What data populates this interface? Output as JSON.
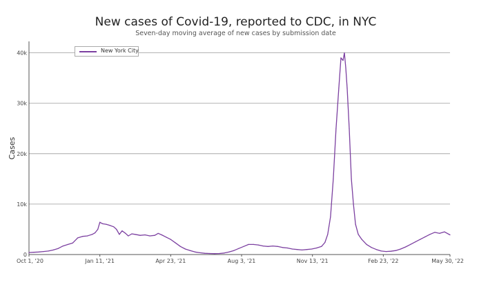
{
  "chart_data": {
    "type": "line",
    "title": "New cases of Covid-19, reported to CDC, in NYC",
    "subtitle": "Seven-day moving average of new cases by submission date",
    "ylabel": "Cases",
    "xlabel": "",
    "ylim": [
      0,
      42000
    ],
    "xlim": [
      "2020-10-01",
      "2022-05-30"
    ],
    "yticks": [
      {
        "value": 0,
        "label": "0"
      },
      {
        "value": 10000,
        "label": "10k"
      },
      {
        "value": 20000,
        "label": "20k"
      },
      {
        "value": 30000,
        "label": "30k"
      },
      {
        "value": 40000,
        "label": "40k"
      }
    ],
    "xticks": [
      {
        "value": "2020-10-01",
        "label": "Oct 1, '20"
      },
      {
        "value": "2021-01-11",
        "label": "Jan 11, '21"
      },
      {
        "value": "2021-04-23",
        "label": "Apr 23, '21"
      },
      {
        "value": "2021-08-03",
        "label": "Aug 3, '21"
      },
      {
        "value": "2021-11-13",
        "label": "Nov 13, '21"
      },
      {
        "value": "2022-02-23",
        "label": "Feb 23, '22"
      },
      {
        "value": "2022-05-30",
        "label": "May 30, '22"
      }
    ],
    "grid": true,
    "legend": "top-left",
    "series": [
      {
        "name": "New York City",
        "color": "#7b3fa0",
        "points": [
          [
            "2020-10-01",
            400
          ],
          [
            "2020-10-08",
            450
          ],
          [
            "2020-10-15",
            500
          ],
          [
            "2020-10-22",
            600
          ],
          [
            "2020-10-29",
            700
          ],
          [
            "2020-11-05",
            900
          ],
          [
            "2020-11-12",
            1200
          ],
          [
            "2020-11-19",
            1700
          ],
          [
            "2020-11-26",
            2000
          ],
          [
            "2020-12-03",
            2300
          ],
          [
            "2020-12-10",
            3300
          ],
          [
            "2020-12-17",
            3600
          ],
          [
            "2020-12-24",
            3700
          ],
          [
            "2020-12-31",
            4000
          ],
          [
            "2021-01-04",
            4300
          ],
          [
            "2021-01-08",
            5000
          ],
          [
            "2021-01-11",
            6400
          ],
          [
            "2021-01-15",
            6100
          ],
          [
            "2021-01-20",
            6000
          ],
          [
            "2021-01-25",
            5800
          ],
          [
            "2021-01-31",
            5500
          ],
          [
            "2021-02-04",
            5000
          ],
          [
            "2021-02-08",
            4000
          ],
          [
            "2021-02-12",
            4700
          ],
          [
            "2021-02-17",
            4200
          ],
          [
            "2021-02-21",
            3700
          ],
          [
            "2021-02-26",
            4100
          ],
          [
            "2021-03-03",
            4000
          ],
          [
            "2021-03-10",
            3800
          ],
          [
            "2021-03-17",
            3900
          ],
          [
            "2021-03-24",
            3700
          ],
          [
            "2021-03-31",
            3800
          ],
          [
            "2021-04-05",
            4200
          ],
          [
            "2021-04-10",
            3900
          ],
          [
            "2021-04-17",
            3400
          ],
          [
            "2021-04-23",
            3000
          ],
          [
            "2021-04-30",
            2300
          ],
          [
            "2021-05-07",
            1600
          ],
          [
            "2021-05-14",
            1100
          ],
          [
            "2021-05-21",
            800
          ],
          [
            "2021-05-28",
            500
          ],
          [
            "2021-06-04",
            350
          ],
          [
            "2021-06-11",
            250
          ],
          [
            "2021-06-18",
            200
          ],
          [
            "2021-06-25",
            180
          ],
          [
            "2021-07-02",
            200
          ],
          [
            "2021-07-09",
            300
          ],
          [
            "2021-07-16",
            500
          ],
          [
            "2021-07-23",
            800
          ],
          [
            "2021-07-30",
            1200
          ],
          [
            "2021-08-06",
            1600
          ],
          [
            "2021-08-13",
            2000
          ],
          [
            "2021-08-20",
            2000
          ],
          [
            "2021-08-27",
            1900
          ],
          [
            "2021-09-03",
            1700
          ],
          [
            "2021-09-10",
            1600
          ],
          [
            "2021-09-17",
            1700
          ],
          [
            "2021-09-24",
            1600
          ],
          [
            "2021-10-01",
            1400
          ],
          [
            "2021-10-08",
            1300
          ],
          [
            "2021-10-15",
            1100
          ],
          [
            "2021-10-22",
            1000
          ],
          [
            "2021-10-29",
            900
          ],
          [
            "2021-11-05",
            1000
          ],
          [
            "2021-11-12",
            1100
          ],
          [
            "2021-11-19",
            1300
          ],
          [
            "2021-11-26",
            1600
          ],
          [
            "2021-12-01",
            2400
          ],
          [
            "2021-12-05",
            4000
          ],
          [
            "2021-12-09",
            7500
          ],
          [
            "2021-12-13",
            15000
          ],
          [
            "2021-12-17",
            25000
          ],
          [
            "2021-12-21",
            33000
          ],
          [
            "2021-12-24",
            39000
          ],
          [
            "2021-12-27",
            38500
          ],
          [
            "2021-12-29",
            40000
          ],
          [
            "2021-12-31",
            37000
          ],
          [
            "2022-01-02",
            33000
          ],
          [
            "2022-01-05",
            25000
          ],
          [
            "2022-01-08",
            15000
          ],
          [
            "2022-01-11",
            10000
          ],
          [
            "2022-01-14",
            6000
          ],
          [
            "2022-01-18",
            4000
          ],
          [
            "2022-01-23",
            3000
          ],
          [
            "2022-01-30",
            2000
          ],
          [
            "2022-02-06",
            1400
          ],
          [
            "2022-02-13",
            1000
          ],
          [
            "2022-02-20",
            700
          ],
          [
            "2022-02-27",
            600
          ],
          [
            "2022-03-06",
            650
          ],
          [
            "2022-03-13",
            800
          ],
          [
            "2022-03-20",
            1100
          ],
          [
            "2022-03-27",
            1500
          ],
          [
            "2022-04-03",
            2000
          ],
          [
            "2022-04-10",
            2500
          ],
          [
            "2022-04-17",
            3000
          ],
          [
            "2022-04-24",
            3500
          ],
          [
            "2022-05-01",
            4000
          ],
          [
            "2022-05-08",
            4400
          ],
          [
            "2022-05-15",
            4200
          ],
          [
            "2022-05-22",
            4500
          ],
          [
            "2022-05-30",
            3900
          ]
        ]
      }
    ]
  }
}
